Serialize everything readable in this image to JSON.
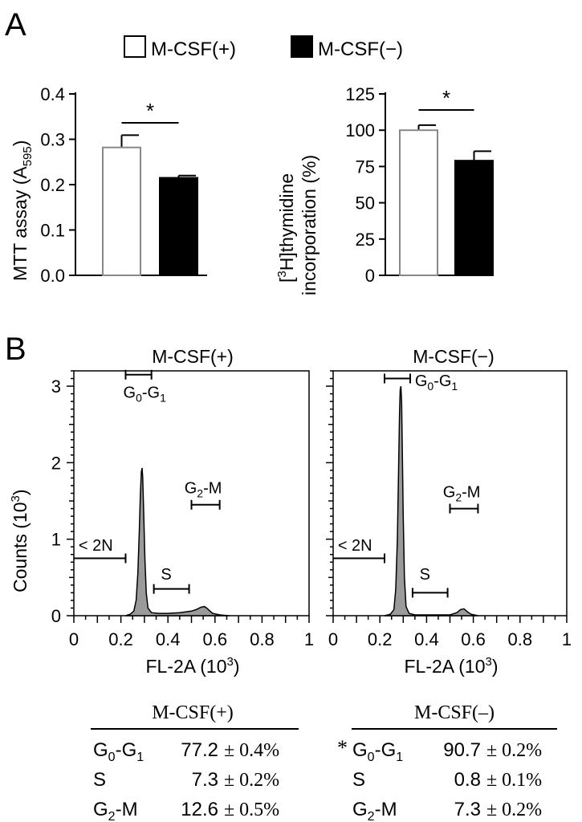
{
  "panel_labels": {
    "a": "A",
    "b": "B"
  },
  "legend": {
    "items": [
      {
        "label": "M-CSF(+)",
        "swatch": "#ffffff"
      },
      {
        "label": "M-CSF(−)",
        "swatch": "#000000"
      }
    ]
  },
  "colors": {
    "bar_plus": "#ffffff",
    "bar_minus": "#000000",
    "bar_plus_edge": "#888888",
    "histogram_fill": "#9a9a9a"
  },
  "chart_data": [
    {
      "type": "bar",
      "ylabel": "MTT assay (A",
      "ylabel_sub": "595",
      "ylabel_close": ")",
      "ylim": [
        0,
        0.4
      ],
      "yticks": [
        "0.0",
        "0.1",
        "0.2",
        "0.3",
        "0.4"
      ],
      "ytick_values": [
        0,
        0.1,
        0.2,
        0.3,
        0.4
      ],
      "categories": [
        "M-CSF(+)",
        "M-CSF(−)"
      ],
      "values": [
        0.282,
        0.215
      ],
      "errors": [
        0.027,
        0.005
      ],
      "significance": "*"
    },
    {
      "type": "bar",
      "ylabel_line1_pre": "[",
      "ylabel_line1_sup": "3",
      "ylabel_line1_post": "H]thymidine",
      "ylabel_line2": "incorporation (%)",
      "ylim": [
        0,
        125
      ],
      "yticks": [
        "0",
        "25",
        "50",
        "75",
        "100",
        "125"
      ],
      "ytick_values": [
        0,
        25,
        50,
        75,
        100,
        125
      ],
      "categories": [
        "M-CSF(+)",
        "M-CSF(−)"
      ],
      "values": [
        100,
        79
      ],
      "errors": [
        3.5,
        6.5
      ],
      "significance": "*"
    },
    {
      "type": "area",
      "title": "M-CSF(+)",
      "ylabel": "Counts (10",
      "ylabel_sup": "3",
      "ylabel_close": ")",
      "xlabel": "FL-2A (10",
      "xlabel_sup": "3",
      "xlabel_close": ")",
      "xlim": [
        0,
        1
      ],
      "ylim": [
        0,
        3.2
      ],
      "xticks": [
        "0",
        "0.2",
        "0.4",
        "0.6",
        "0.8",
        "1"
      ],
      "xtick_values": [
        0,
        0.2,
        0.4,
        0.6,
        0.8,
        1
      ],
      "yticks": [
        "0",
        "1",
        "2",
        "3"
      ],
      "ytick_values": [
        0,
        1,
        2,
        3
      ],
      "x": [
        0.22,
        0.24,
        0.255,
        0.265,
        0.272,
        0.278,
        0.283,
        0.287,
        0.29,
        0.293,
        0.297,
        0.302,
        0.308,
        0.315,
        0.33,
        0.36,
        0.4,
        0.45,
        0.5,
        0.52,
        0.54,
        0.555,
        0.565,
        0.575,
        0.59,
        0.62,
        0.66
      ],
      "y": [
        0.0,
        0.02,
        0.06,
        0.2,
        0.55,
        1.1,
        1.6,
        1.88,
        1.93,
        1.8,
        1.35,
        0.75,
        0.3,
        0.1,
        0.04,
        0.03,
        0.03,
        0.04,
        0.06,
        0.08,
        0.11,
        0.12,
        0.1,
        0.07,
        0.03,
        0.01,
        0.0
      ],
      "gates": [
        {
          "name": "G0-G1",
          "label": "G",
          "sub": "0",
          "label2": "-G",
          "sub2": "1",
          "range": [
            0.22,
            0.33
          ],
          "level": 3.15,
          "text_at": [
            0.21,
            2.85
          ]
        },
        {
          "name": "< 2N",
          "label": "< 2N",
          "range": [
            0.0,
            0.22
          ],
          "level": 0.75,
          "text_at": [
            0.02,
            0.85
          ]
        },
        {
          "name": "S",
          "label": "S",
          "range": [
            0.34,
            0.49
          ],
          "level": 0.35,
          "text_at": [
            0.37,
            0.47
          ]
        },
        {
          "name": "G2-M",
          "label": "G",
          "sub": "2",
          "label2": "-M",
          "range": [
            0.5,
            0.62
          ],
          "level": 1.45,
          "text_at": [
            0.47,
            1.6
          ]
        }
      ]
    },
    {
      "type": "area",
      "title": "M-CSF(−)",
      "xlabel": "FL-2A (10",
      "xlabel_sup": "3",
      "xlabel_close": ")",
      "xlim": [
        0,
        1
      ],
      "ylim": [
        0,
        3.2
      ],
      "xticks": [
        "0",
        "0.2",
        "0.4",
        "0.6",
        "0.8",
        "1"
      ],
      "xtick_values": [
        0,
        0.2,
        0.4,
        0.6,
        0.8,
        1
      ],
      "x": [
        0.22,
        0.245,
        0.26,
        0.268,
        0.275,
        0.28,
        0.284,
        0.287,
        0.29,
        0.293,
        0.296,
        0.3,
        0.305,
        0.312,
        0.325,
        0.35,
        0.4,
        0.5,
        0.53,
        0.545,
        0.56,
        0.575,
        0.59,
        0.62
      ],
      "y": [
        0.0,
        0.02,
        0.08,
        0.35,
        1.0,
        1.9,
        2.6,
        2.95,
        3.0,
        2.8,
        2.2,
        1.3,
        0.5,
        0.12,
        0.03,
        0.01,
        0.01,
        0.01,
        0.04,
        0.08,
        0.09,
        0.05,
        0.02,
        0.0
      ],
      "gates": [
        {
          "name": "G0-G1",
          "label": "G",
          "sub": "0",
          "label2": "-G",
          "sub2": "1",
          "range": [
            0.22,
            0.33
          ],
          "level": 3.1,
          "text_at": [
            0.35,
            3.0
          ]
        },
        {
          "name": "< 2N",
          "label": "< 2N",
          "range": [
            0.0,
            0.22
          ],
          "level": 0.75,
          "text_at": [
            0.02,
            0.85
          ]
        },
        {
          "name": "S",
          "label": "S",
          "range": [
            0.34,
            0.49
          ],
          "level": 0.3,
          "text_at": [
            0.37,
            0.47
          ]
        },
        {
          "name": "G2-M",
          "label": "G",
          "sub": "2",
          "label2": "-M",
          "range": [
            0.5,
            0.62
          ],
          "level": 1.4,
          "text_at": [
            0.47,
            1.55
          ]
        }
      ]
    }
  ],
  "tables": [
    {
      "title": "M-CSF(+)",
      "marker": "",
      "rows": [
        {
          "phase": "G",
          "sub": "0",
          "phase2": "-G",
          "sub2": "1",
          "value": "77.2",
          "err": "± 0.4%"
        },
        {
          "phase": "S",
          "sub": "",
          "phase2": "",
          "sub2": "",
          "value": "7.3",
          "err": "± 0.2%"
        },
        {
          "phase": "G",
          "sub": "2",
          "phase2": "-M",
          "sub2": "",
          "value": "12.6",
          "err": "± 0.5%"
        }
      ]
    },
    {
      "title": "M-CSF(–)",
      "marker": "*",
      "rows": [
        {
          "phase": "G",
          "sub": "0",
          "phase2": "-G",
          "sub2": "1",
          "value": "90.7",
          "err": "± 0.2%"
        },
        {
          "phase": "S",
          "sub": "",
          "phase2": "",
          "sub2": "",
          "value": "0.8",
          "err": "± 0.1%"
        },
        {
          "phase": "G",
          "sub": "2",
          "phase2": "-M",
          "sub2": "",
          "value": "7.3",
          "err": "± 0.2%"
        }
      ]
    }
  ]
}
